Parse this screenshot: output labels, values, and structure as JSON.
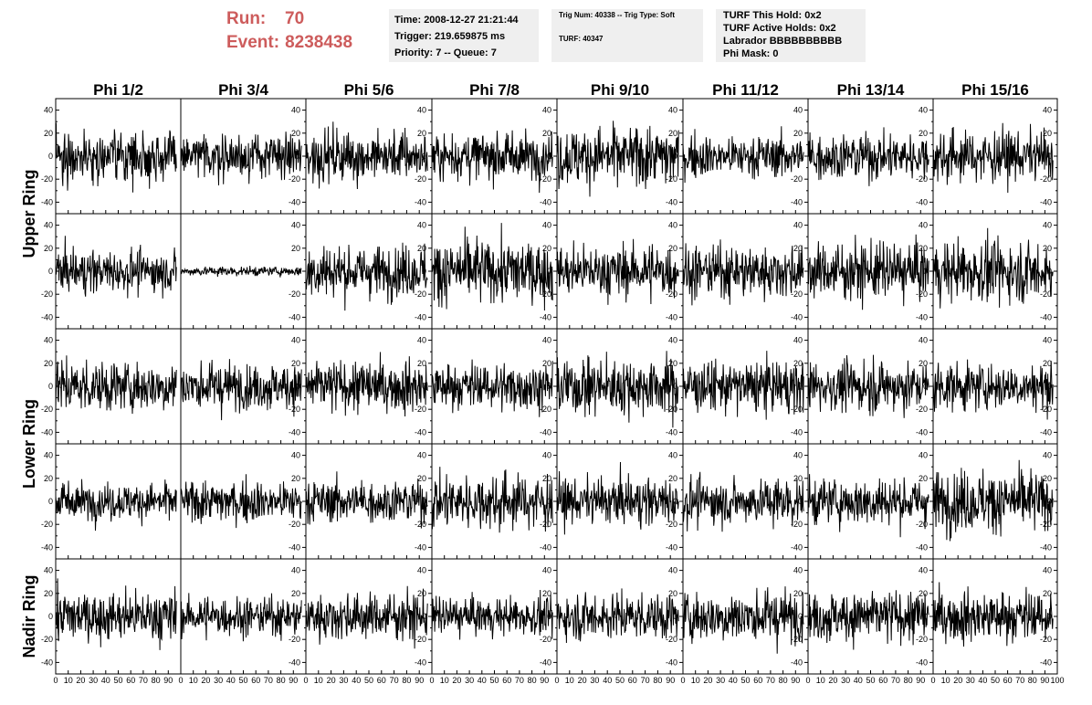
{
  "header": {
    "run_label": "Run:",
    "run_value": "70",
    "event_label": "Event:",
    "event_value": "8238438",
    "time": "Time: 2008-12-27 21:21:44",
    "trigger": "Trigger: 219.659875 ms",
    "priority_queue": "Priority: 7 -- Queue: 7",
    "trig_info": "Trig Num: 40338 -- Trig Type: Soft",
    "turf": "TURF: 40347",
    "turf_this_hold": "TURF This Hold: 0x2",
    "turf_active_holds": "TURF Active Holds: 0x2",
    "labrador": "Labrador BBBBBBBBBB",
    "phi_mask": "Phi Mask: 0"
  },
  "colors": {
    "run_text": "#cd5c5c",
    "info_bg": "#efefef",
    "trace": "#000000"
  },
  "chart_data": {
    "type": "line",
    "columns": [
      "Phi 1/2",
      "Phi 3/4",
      "Phi 5/6",
      "Phi 7/8",
      "Phi 9/10",
      "Phi 11/12",
      "Phi 13/14",
      "Phi 15/16"
    ],
    "rows": [
      {
        "label": "Upper Ring",
        "rows": 2
      },
      {
        "label": "Lower Ring",
        "rows": 2
      },
      {
        "label": "Nadir Ring",
        "rows": 1
      }
    ],
    "xlim": [
      0,
      100
    ],
    "ylim": [
      -50,
      50
    ],
    "x_ticks": [
      0,
      10,
      20,
      30,
      40,
      50,
      60,
      70,
      80,
      90,
      100
    ],
    "x_tick_labels": [
      "0",
      "10",
      "20",
      "30",
      "40",
      "50",
      "60",
      "70",
      "80",
      "90",
      "100"
    ],
    "y_ticks": [
      -40,
      -20,
      0,
      20,
      40
    ],
    "y_tick_labels": [
      "-40",
      "-20",
      "0",
      "20",
      "40"
    ],
    "samples_per_trace": 256,
    "amplitude_rms": [
      [
        11,
        9,
        11,
        10,
        13,
        9,
        10,
        11
      ],
      [
        9,
        2,
        11,
        14,
        11,
        11,
        12,
        13
      ],
      [
        11,
        10,
        11,
        10,
        12,
        11,
        11,
        10
      ],
      [
        8,
        9,
        9,
        12,
        10,
        10,
        10,
        13
      ],
      [
        11,
        8,
        10,
        8,
        10,
        11,
        11,
        11
      ]
    ]
  }
}
